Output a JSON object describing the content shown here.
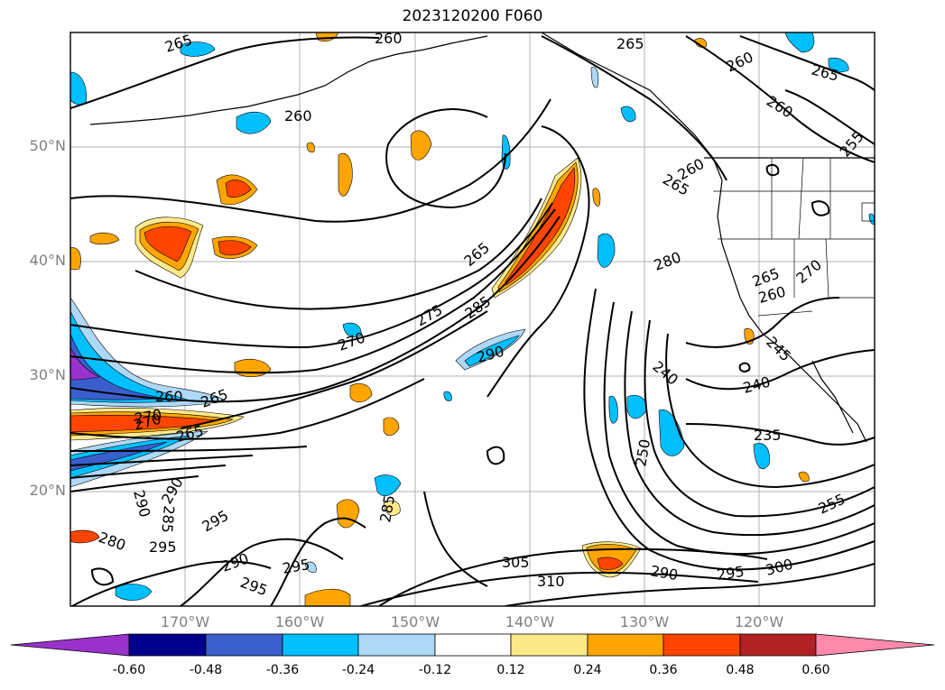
{
  "title": "2023120200 F060",
  "lat_labels": [
    "50°N",
    "40°N",
    "30°N",
    "20°N"
  ],
  "lon_labels": [
    "170°W",
    "160°W",
    "150°W",
    "140°W",
    "130°W",
    "120°W"
  ],
  "contour_labels": [
    "265",
    "260",
    "265",
    "260",
    "265",
    "260",
    "260",
    "255",
    "260",
    "265",
    "265",
    "280",
    "285",
    "275",
    "270",
    "290",
    "265",
    "270",
    "260",
    "265",
    "270",
    "240",
    "240",
    "235",
    "250",
    "245",
    "260",
    "265",
    "270",
    "290",
    "290",
    "285",
    "295",
    "280",
    "295",
    "290",
    "295",
    "295",
    "285",
    "305",
    "310",
    "290",
    "295",
    "300",
    "255"
  ],
  "colorbar": {
    "ticks": [
      "-0.60",
      "-0.48",
      "-0.36",
      "-0.24",
      "-0.12",
      "0.12",
      "0.24",
      "0.36",
      "0.48",
      "0.60"
    ],
    "colors": [
      "#9932cc",
      "#00008b",
      "#3a5fcd",
      "#00bfff",
      "#add8f6",
      "#ffffff",
      "#fde98a",
      "#ffa500",
      "#ff4500",
      "#b22222",
      "#ff89ab"
    ]
  }
}
